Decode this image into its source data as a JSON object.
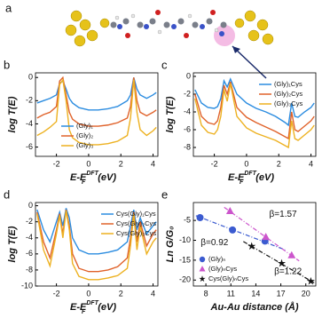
{
  "panel_a": {
    "label": "a"
  },
  "chart_data": [
    {
      "type": "line",
      "panel": "b",
      "ylabel": "log T(E)",
      "xlabel": {
        "main": "E-E",
        "sub": "F",
        "sup": "DFT",
        "unit": "(eV)"
      },
      "xlim": [
        -3.3,
        4.3
      ],
      "ylim": [
        -6.8,
        0.4
      ],
      "xticks": [
        -2,
        0,
        2,
        4
      ],
      "yticks": [
        0,
        -2,
        -4,
        -6
      ],
      "legend": "lower-center",
      "x": [
        -3.2,
        -2.8,
        -2.4,
        -2.0,
        -1.8,
        -1.6,
        -1.4,
        -1.2,
        -1.0,
        -0.6,
        0,
        0.6,
        1.2,
        1.8,
        2.4,
        2.6,
        2.8,
        3.0,
        3.2,
        3.6,
        4.0,
        4.2
      ],
      "series": [
        {
          "name": "(Gly)₁",
          "color": "#2b8ce0",
          "values": [
            -2.2,
            -2.0,
            -1.8,
            -1.5,
            -0.5,
            -0.3,
            -1.0,
            -1.8,
            -2.2,
            -2.6,
            -2.8,
            -2.8,
            -2.7,
            -2.5,
            -2.0,
            -1.5,
            0,
            -1.0,
            -1.5,
            -1.8,
            -1.5,
            -1.3
          ]
        },
        {
          "name": "(Gly)₂",
          "color": "#e0622a",
          "values": [
            -3.5,
            -3.2,
            -3.0,
            -2.5,
            -0.3,
            0,
            -1.5,
            -3.0,
            -3.6,
            -4.0,
            -4.2,
            -4.2,
            -4.1,
            -3.9,
            -3.5,
            -2.5,
            0,
            -2.0,
            -3.0,
            -3.3,
            -3.0,
            -2.8
          ]
        },
        {
          "name": "(Gly)₃",
          "color": "#edb120",
          "values": [
            -5.0,
            -4.7,
            -4.3,
            -3.8,
            -0.6,
            -0.2,
            -2.0,
            -4.5,
            -5.2,
            -5.6,
            -5.8,
            -5.8,
            -5.7,
            -5.5,
            -5.0,
            -3.5,
            -0.2,
            -3.0,
            -4.5,
            -5.0,
            -4.6,
            -4.3
          ]
        }
      ]
    },
    {
      "type": "line",
      "panel": "c",
      "ylabel": "log T(E)",
      "xlabel": {
        "main": "E-E",
        "sub": "F",
        "sup": "DFT",
        "unit": "(eV)"
      },
      "xlim": [
        -3.3,
        4.3
      ],
      "ylim": [
        -9,
        0.4
      ],
      "xticks": [
        -2,
        0,
        2,
        4
      ],
      "yticks": [
        0,
        -2,
        -4,
        -6,
        -8
      ],
      "legend": "upper-right",
      "x": [
        -3.2,
        -2.8,
        -2.4,
        -2.0,
        -1.8,
        -1.6,
        -1.4,
        -1.2,
        -1.0,
        -0.6,
        0,
        0.6,
        1.2,
        1.8,
        2.4,
        2.6,
        2.8,
        3.0,
        3.2,
        3.6,
        4.0,
        4.2
      ],
      "series": [
        {
          "name": "(Gly)₁Cys",
          "color": "#2b8ce0",
          "values": [
            -1.5,
            -3.0,
            -3.5,
            -3.6,
            -3.4,
            -2.5,
            -0.5,
            -1.2,
            -0.3,
            -2.0,
            -3.0,
            -3.6,
            -4.0,
            -4.5,
            -5.2,
            -5.5,
            -3.0,
            -4.5,
            -4.6,
            -4.0,
            -3.5,
            -3.0
          ]
        },
        {
          "name": "(Gly)₂Cys",
          "color": "#e0622a",
          "values": [
            -2.0,
            -4.5,
            -5.2,
            -5.4,
            -5.0,
            -3.5,
            -1.0,
            -2.0,
            -0.6,
            -3.5,
            -4.6,
            -5.2,
            -5.7,
            -6.2,
            -6.8,
            -7.0,
            -4.0,
            -6.0,
            -6.2,
            -5.6,
            -5.0,
            -4.5
          ]
        },
        {
          "name": "(Gly)₃Cys",
          "color": "#edb120",
          "values": [
            -2.5,
            -5.5,
            -6.3,
            -6.5,
            -6.0,
            -4.5,
            -1.5,
            -2.8,
            -0.8,
            -4.5,
            -5.8,
            -6.4,
            -6.8,
            -7.2,
            -7.8,
            -8.0,
            -5.0,
            -7.0,
            -7.2,
            -6.6,
            -6.0,
            -5.5
          ]
        }
      ]
    },
    {
      "type": "line",
      "panel": "d",
      "ylabel": "log T(E)",
      "xlabel": {
        "main": "E-E",
        "sub": "F",
        "sup": "DFT",
        "unit": "(eV)"
      },
      "xlim": [
        -3.3,
        4.3
      ],
      "ylim": [
        -10,
        0.4
      ],
      "xticks": [
        -2,
        0,
        2,
        4
      ],
      "yticks": [
        0,
        -2,
        -4,
        -6,
        -8,
        -10
      ],
      "legend": "upper-right",
      "x": [
        -3.2,
        -2.8,
        -2.4,
        -2.0,
        -1.8,
        -1.6,
        -1.4,
        -1.2,
        -1.0,
        -0.6,
        0,
        0.6,
        1.2,
        1.8,
        2.4,
        2.6,
        2.8,
        3.0,
        3.2,
        3.6,
        4.0,
        4.2
      ],
      "series": [
        {
          "name": "Cys(Gly)₁Cys",
          "color": "#2b8ce0",
          "values": [
            -0.5,
            -3.0,
            -4.5,
            -2.0,
            -0.8,
            -2.5,
            -0.3,
            -1.5,
            -4.0,
            -5.5,
            -6.0,
            -6.0,
            -5.8,
            -5.5,
            -4.5,
            -2.5,
            -0.5,
            -3.0,
            -1.5,
            -3.5,
            -2.5,
            -2.0
          ]
        },
        {
          "name": "Cys(Gly)₂Cys",
          "color": "#e0622a",
          "values": [
            -0.8,
            -4.5,
            -6.5,
            -3.0,
            -1.0,
            -3.5,
            -0.5,
            -2.5,
            -6.0,
            -7.8,
            -8.2,
            -8.2,
            -8.0,
            -7.6,
            -6.5,
            -4.0,
            -0.8,
            -4.5,
            -2.0,
            -5.0,
            -3.5,
            -3.0
          ]
        },
        {
          "name": "Cys(Gly)₃Cys",
          "color": "#edb120",
          "values": [
            -1.0,
            -5.5,
            -7.5,
            -3.5,
            -1.2,
            -4.0,
            -0.6,
            -3.0,
            -7.2,
            -8.8,
            -9.2,
            -9.2,
            -9.0,
            -8.7,
            -7.8,
            -5.0,
            -1.0,
            -5.5,
            -2.5,
            -6.0,
            -4.5,
            -4.0
          ]
        }
      ]
    },
    {
      "type": "scatter",
      "panel": "e",
      "ylabel": "Ln G/G₀",
      "xlabel": "Au-Au distance (Å)",
      "xlim": [
        6.5,
        21.2
      ],
      "ylim": [
        -21.5,
        -0.5
      ],
      "xticks": [
        8,
        11,
        14,
        17,
        20
      ],
      "yticks": [
        -5,
        -10,
        -15,
        -20
      ],
      "legend": "lower-left",
      "annotations": [
        "β=1.57",
        "β=0.92",
        "β=1.22"
      ],
      "series": [
        {
          "name": "(Gly)ₙ",
          "color": "#3b5bd0",
          "marker": "circle",
          "x": [
            7.3,
            11.2,
            15.1
          ],
          "y": [
            -4.3,
            -7.4,
            -10.2
          ],
          "fit_x": [
            6.8,
            17.5
          ],
          "fit_y": [
            -3.8,
            -12.4
          ]
        },
        {
          "name": "(Gly)ₙCys",
          "color": "#cc55cc",
          "marker": "triangle",
          "x": [
            10.9,
            15.2,
            18.3
          ],
          "y": [
            -2.7,
            -9.2,
            -13.8
          ],
          "fit_x": [
            10.2,
            19.2
          ],
          "fit_y": [
            -1.7,
            -15.2
          ]
        },
        {
          "name": "Cys(Gly)ₙCys",
          "color": "#111111",
          "marker": "star",
          "x": [
            13.5,
            17.1,
            20.6
          ],
          "y": [
            -11.5,
            -15.8,
            -20.3
          ],
          "fit_x": [
            12.5,
            21.0
          ],
          "fit_y": [
            -10.3,
            -20.7
          ]
        }
      ]
    }
  ]
}
